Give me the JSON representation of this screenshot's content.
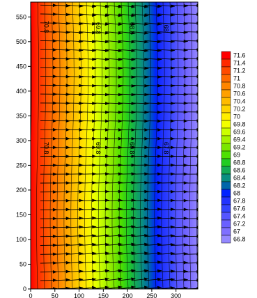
{
  "chart_data": {
    "type": "heatmap",
    "description_note": "",
    "title": "",
    "xlabel": "",
    "ylabel": "",
    "xlim": [
      0,
      345
    ],
    "ylim": [
      0,
      580
    ],
    "x_ticks": [
      0,
      50,
      100,
      150,
      200,
      250,
      300
    ],
    "y_ticks": [
      0,
      50,
      100,
      150,
      200,
      250,
      300,
      350,
      400,
      450,
      500,
      550
    ],
    "grid": false,
    "legend_placement": "right",
    "colorbar": {
      "levels": [
        {
          "label": "71.6",
          "color": "#ff0000"
        },
        {
          "label": "71.4",
          "color": "#ff2a00"
        },
        {
          "label": "71.2",
          "color": "#ff4a00"
        },
        {
          "label": "71",
          "color": "#ff6a00"
        },
        {
          "label": "70.8",
          "color": "#ff8500"
        },
        {
          "label": "70.6",
          "color": "#ffa000"
        },
        {
          "label": "70.4",
          "color": "#ffbb00"
        },
        {
          "label": "70.2",
          "color": "#ffd400"
        },
        {
          "label": "70",
          "color": "#ffee00"
        },
        {
          "label": "69.8",
          "color": "#f2ff00"
        },
        {
          "label": "69.6",
          "color": "#ccff00"
        },
        {
          "label": "69.4",
          "color": "#a6f200"
        },
        {
          "label": "69.2",
          "color": "#7ae600"
        },
        {
          "label": "69",
          "color": "#4ee000"
        },
        {
          "label": "68.8",
          "color": "#22cc22"
        },
        {
          "label": "68.6",
          "color": "#14aa55"
        },
        {
          "label": "68.4",
          "color": "#0a8f80"
        },
        {
          "label": "68.2",
          "color": "#0066aa"
        },
        {
          "label": "68",
          "color": "#0022ff"
        },
        {
          "label": "67.8",
          "color": "#2233ff"
        },
        {
          "label": "67.6",
          "color": "#3344ff"
        },
        {
          "label": "67.4",
          "color": "#5555ff"
        },
        {
          "label": "67.2",
          "color": "#6a60ff"
        },
        {
          "label": "67",
          "color": "#7f70ff"
        },
        {
          "label": "66.8",
          "color": "#9488ff"
        }
      ]
    },
    "contour_labels": [
      {
        "text": "70.8",
        "x": 28,
        "y": 530
      },
      {
        "text": "69.8",
        "x": 135,
        "y": 527
      },
      {
        "text": "68.8",
        "x": 205,
        "y": 527
      },
      {
        "text": "68",
        "x": 275,
        "y": 527
      },
      {
        "text": "70.8",
        "x": 28,
        "y": 285
      },
      {
        "text": "69.8",
        "x": 135,
        "y": 285
      },
      {
        "text": "68.8",
        "x": 205,
        "y": 285
      },
      {
        "text": "67.8",
        "x": 275,
        "y": 285
      }
    ],
    "field": {
      "value_at_x": [
        [
          0,
          71.7
        ],
        [
          345,
          66.8
        ]
      ],
      "arrow_direction": "rightward, converging toward mid-height",
      "arrow_rows_y": [
        0,
        17,
        34,
        52,
        70,
        88,
        106,
        124,
        142,
        160,
        178,
        196,
        214,
        232,
        250,
        268,
        286,
        304,
        322,
        340,
        358,
        376,
        394,
        412,
        430,
        448,
        466,
        484,
        502,
        520,
        538,
        556,
        574
      ],
      "arrow_cols_x": [
        20,
        47,
        74,
        101,
        128,
        155,
        182,
        209,
        236,
        263,
        290,
        317,
        342
      ]
    }
  }
}
